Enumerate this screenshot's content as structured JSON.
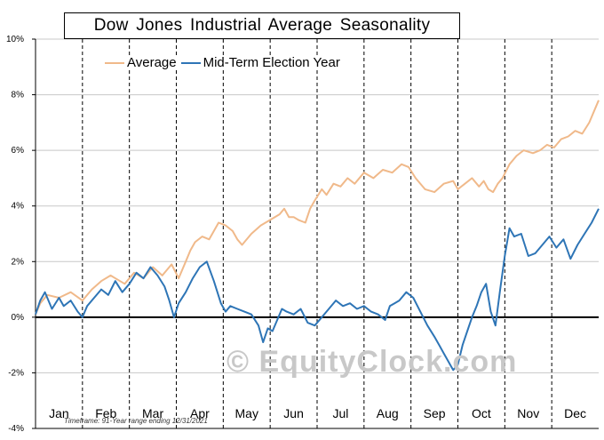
{
  "title": "Dow Jones Industrial Average  Seasonality",
  "watermark": "© EquityClock.com",
  "footnote": "Timeframe: 91-Year range ending 12/31/2021",
  "chart_data": {
    "type": "line",
    "ylim": [
      -4,
      10
    ],
    "yticks": [
      -4,
      -2,
      0,
      2,
      4,
      6,
      8,
      10
    ],
    "ytick_labels": [
      "-4%",
      "-2%",
      "0%",
      "2%",
      "4%",
      "6%",
      "8%",
      "10%"
    ],
    "months": [
      "Jan",
      "Feb",
      "Mar",
      "Apr",
      "May",
      "Jun",
      "Jul",
      "Aug",
      "Sep",
      "Oct",
      "Nov",
      "Dec"
    ],
    "grid": true,
    "legend_position": "top-left",
    "series": [
      {
        "name": "Average",
        "color": "#f0b98a",
        "x": [
          0,
          0.1,
          0.25,
          0.5,
          0.75,
          1.0,
          1.2,
          1.4,
          1.6,
          1.9,
          2.1,
          2.3,
          2.5,
          2.7,
          2.9,
          3.05,
          3.2,
          3.3,
          3.4,
          3.55,
          3.7,
          3.8,
          3.9,
          4.05,
          4.2,
          4.3,
          4.4,
          4.6,
          4.8,
          5.0,
          5.2,
          5.3,
          5.4,
          5.5,
          5.6,
          5.75,
          5.85,
          5.95,
          6.1,
          6.2,
          6.35,
          6.5,
          6.65,
          6.8,
          7.0,
          7.2,
          7.4,
          7.6,
          7.8,
          7.95,
          8.1,
          8.3,
          8.5,
          8.7,
          8.9,
          9.0,
          9.15,
          9.3,
          9.45,
          9.55,
          9.65,
          9.75,
          9.85,
          9.95,
          10.1,
          10.25,
          10.4,
          10.6,
          10.75,
          10.9,
          11.05,
          11.2,
          11.35,
          11.5,
          11.65,
          11.8,
          11.9,
          12.0
        ],
        "values": [
          0.1,
          0.5,
          0.8,
          0.7,
          0.9,
          0.6,
          1.0,
          1.3,
          1.5,
          1.2,
          1.6,
          1.4,
          1.8,
          1.5,
          1.9,
          1.4,
          2.0,
          2.4,
          2.7,
          2.9,
          2.8,
          3.1,
          3.4,
          3.3,
          3.1,
          2.8,
          2.6,
          3.0,
          3.3,
          3.5,
          3.7,
          3.9,
          3.6,
          3.6,
          3.5,
          3.4,
          3.9,
          4.2,
          4.6,
          4.4,
          4.8,
          4.7,
          5.0,
          4.8,
          5.2,
          5.0,
          5.3,
          5.2,
          5.5,
          5.4,
          5.0,
          4.6,
          4.5,
          4.8,
          4.9,
          4.6,
          4.8,
          5.0,
          4.7,
          4.9,
          4.6,
          4.5,
          4.8,
          5.0,
          5.5,
          5.8,
          6.0,
          5.9,
          6.0,
          6.2,
          6.1,
          6.4,
          6.5,
          6.7,
          6.6,
          7.0,
          7.4,
          7.8
        ]
      },
      {
        "name": "Mid-Term Election Year",
        "color": "#2e75b6",
        "x": [
          0,
          0.1,
          0.2,
          0.35,
          0.5,
          0.6,
          0.75,
          0.9,
          1.0,
          1.1,
          1.25,
          1.4,
          1.55,
          1.7,
          1.85,
          2.0,
          2.15,
          2.3,
          2.45,
          2.6,
          2.75,
          2.85,
          2.95,
          3.05,
          3.2,
          3.35,
          3.5,
          3.65,
          3.8,
          3.95,
          4.05,
          4.15,
          4.3,
          4.45,
          4.6,
          4.75,
          4.85,
          4.95,
          5.05,
          5.15,
          5.25,
          5.35,
          5.5,
          5.65,
          5.8,
          5.95,
          6.1,
          6.25,
          6.4,
          6.55,
          6.7,
          6.85,
          7.0,
          7.15,
          7.3,
          7.45,
          7.55,
          7.65,
          7.75,
          7.9,
          8.05,
          8.2,
          8.35,
          8.5,
          8.6,
          8.7,
          8.8,
          8.9,
          9.0,
          9.1,
          9.2,
          9.3,
          9.4,
          9.5,
          9.6,
          9.7,
          9.8,
          9.9,
          10.0,
          10.1,
          10.2,
          10.35,
          10.5,
          10.65,
          10.8,
          10.95,
          11.1,
          11.25,
          11.4,
          11.55,
          11.7,
          11.85,
          12.0
        ],
        "values": [
          0.1,
          0.6,
          0.9,
          0.3,
          0.7,
          0.4,
          0.6,
          0.2,
          0.0,
          0.4,
          0.7,
          1.0,
          0.8,
          1.3,
          0.9,
          1.2,
          1.6,
          1.4,
          1.8,
          1.5,
          1.1,
          0.6,
          0.0,
          0.5,
          0.9,
          1.4,
          1.8,
          2.0,
          1.3,
          0.5,
          0.2,
          0.4,
          0.3,
          0.2,
          0.1,
          -0.3,
          -0.9,
          -0.4,
          -0.5,
          -0.1,
          0.3,
          0.2,
          0.1,
          0.3,
          -0.2,
          -0.3,
          0.0,
          0.3,
          0.6,
          0.4,
          0.5,
          0.3,
          0.4,
          0.2,
          0.1,
          -0.1,
          0.4,
          0.5,
          0.6,
          0.9,
          0.7,
          0.2,
          -0.3,
          -0.7,
          -1.0,
          -1.3,
          -1.6,
          -1.9,
          -1.7,
          -1.0,
          -0.5,
          0.0,
          0.4,
          0.9,
          1.2,
          0.2,
          -0.3,
          1.0,
          2.2,
          3.2,
          2.9,
          3.0,
          2.2,
          2.3,
          2.6,
          2.9,
          2.5,
          2.8,
          2.1,
          2.6,
          3.0,
          3.4,
          3.9
        ]
      }
    ]
  }
}
